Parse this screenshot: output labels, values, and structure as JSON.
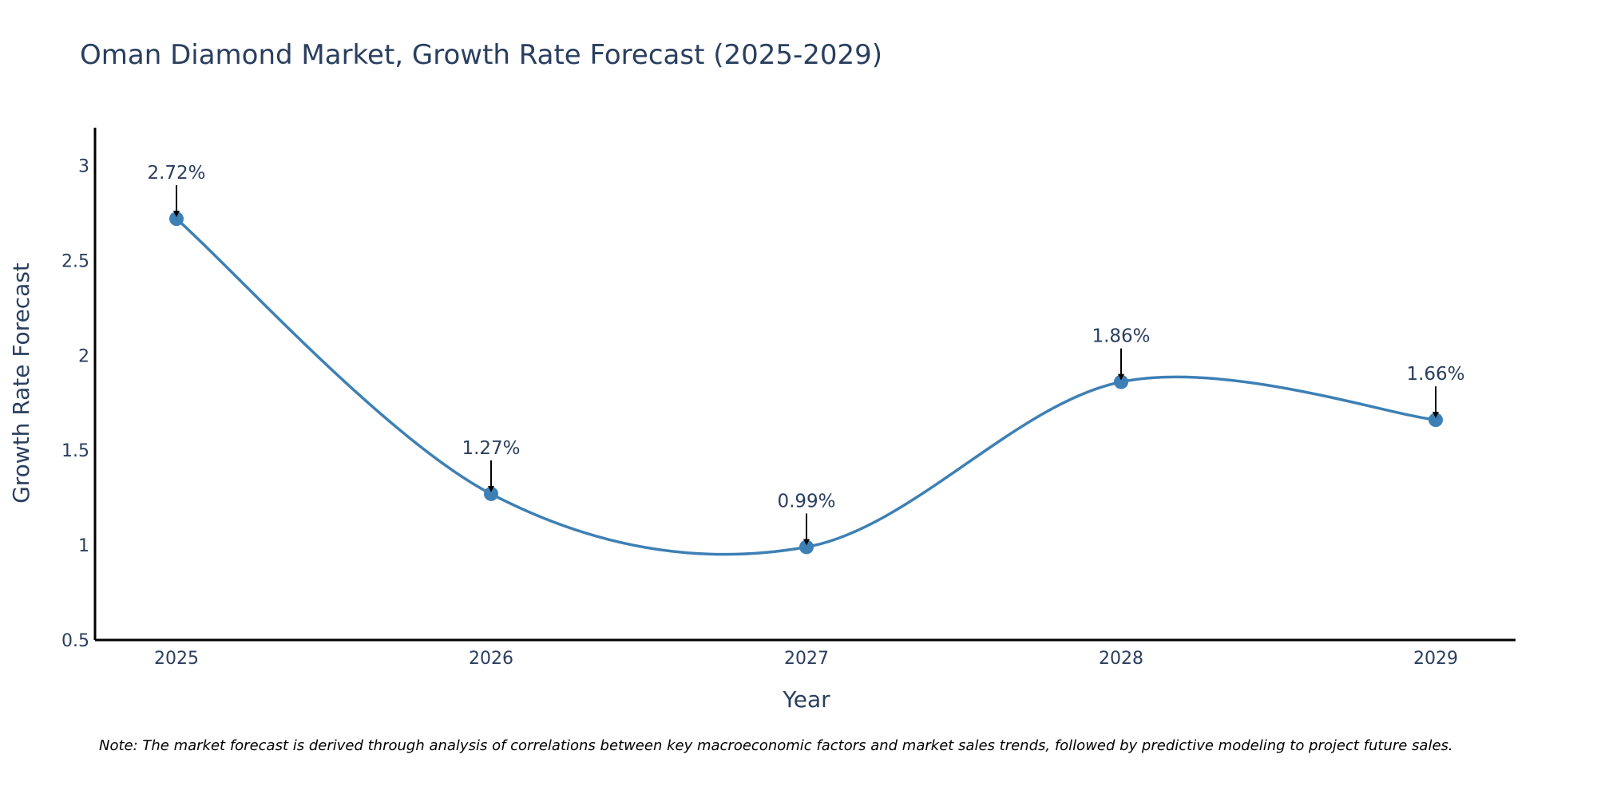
{
  "colors": {
    "line": "#3d80b5",
    "marker": "#3d80b5",
    "axis": "#000000",
    "text": "#2a3f5f",
    "arrow": "#000000"
  },
  "chart_data": {
    "type": "line",
    "title": "Oman Diamond Market, Growth Rate Forecast (2025-2029)",
    "xlabel": "Year",
    "ylabel": "Growth Rate Forecast",
    "categories": [
      "2025",
      "2026",
      "2027",
      "2028",
      "2029"
    ],
    "series": [
      {
        "name": "Growth Rate Forecast",
        "values": [
          2.72,
          1.27,
          0.99,
          1.86,
          1.66
        ],
        "labels": [
          "2.72%",
          "1.27%",
          "0.99%",
          "1.86%",
          "1.66%"
        ]
      }
    ],
    "ylim": [
      0.5,
      3.2
    ],
    "yticks": [
      0.5,
      1,
      1.5,
      2,
      2.5,
      3
    ],
    "ytick_labels": [
      "0.5",
      "1",
      "1.5",
      "2",
      "2.5",
      "3"
    ],
    "grid": false,
    "line_shape": "spline",
    "note": "Note: The market forecast is derived through analysis of correlations between key macroeconomic factors and market sales trends, followed by predictive modeling to project future sales."
  }
}
